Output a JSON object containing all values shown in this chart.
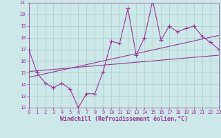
{
  "title": "",
  "xlabel": "Windchill (Refroidissement éolien,°C)",
  "ylabel": "",
  "xlim": [
    0,
    23
  ],
  "ylim": [
    12,
    21
  ],
  "xticks": [
    0,
    1,
    2,
    3,
    4,
    5,
    6,
    7,
    8,
    9,
    10,
    11,
    12,
    13,
    14,
    15,
    16,
    17,
    18,
    19,
    20,
    21,
    22,
    23
  ],
  "yticks": [
    12,
    13,
    14,
    15,
    16,
    17,
    18,
    19,
    20,
    21
  ],
  "data_x": [
    0,
    1,
    2,
    3,
    4,
    5,
    6,
    7,
    8,
    9,
    10,
    11,
    12,
    13,
    14,
    15,
    16,
    17,
    18,
    19,
    20,
    21,
    22,
    23
  ],
  "data_y": [
    17.0,
    15.0,
    14.1,
    13.7,
    14.1,
    13.6,
    12.0,
    13.2,
    13.2,
    15.1,
    17.7,
    17.5,
    20.5,
    16.5,
    18.0,
    21.2,
    17.8,
    19.0,
    18.5,
    18.8,
    19.0,
    18.1,
    17.6,
    17.0
  ],
  "line_color": "#993399",
  "bg_color": "#cce8e8",
  "grid_color": "#aacccc",
  "trend1_x": [
    0,
    23
  ],
  "trend1_y": [
    15.1,
    16.5
  ],
  "trend2_x": [
    0,
    23
  ],
  "trend2_y": [
    14.6,
    18.2
  ],
  "marker": "+",
  "marker_size": 4,
  "line_width": 0.8,
  "tick_fontsize": 5.0,
  "xlabel_fontsize": 6.0
}
